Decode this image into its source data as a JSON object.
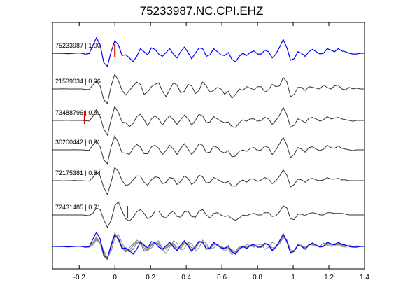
{
  "chart_data": {
    "type": "line",
    "title": "75233987.NC.CPI.EHZ",
    "xlim": [
      -0.35,
      1.4
    ],
    "x_ticks": [
      "-0.2",
      "0",
      "0.2",
      "0.4",
      "0.6",
      "0.8",
      "1",
      "1.2",
      "1.4"
    ],
    "x_tick_values": [
      -0.2,
      0,
      0.2,
      0.4,
      0.6,
      0.8,
      1.0,
      1.2,
      1.4
    ],
    "grid": false,
    "series": [
      {
        "name": "75233987 | 1.00",
        "color": "#0000ff",
        "pick_x": 0.0,
        "values": [
          0.0,
          0.0,
          -0.01,
          -0.01,
          -0.03,
          -0.02,
          0.0,
          0.02,
          0.0,
          -0.06,
          -0.02,
          0.5,
          1.0,
          0.55,
          -0.62,
          -0.85,
          0.1,
          0.8,
          0.55,
          -0.15,
          -0.1,
          -0.3,
          -0.55,
          -0.2,
          0.3,
          0.1,
          -0.1,
          0.35,
          0.25,
          -0.05,
          -0.2,
          0.05,
          0.3,
          -0.05,
          -0.3,
          0.1,
          0.4,
          0.05,
          -0.35,
          0.0,
          0.35,
          0.3,
          -0.2,
          -0.1,
          0.3,
          0.1,
          -0.1,
          -0.15,
          0.05,
          -0.4,
          -0.55,
          -0.2,
          0.0,
          -0.15,
          0.05,
          0.15,
          -0.05,
          -0.05,
          0.2,
          0.1,
          -0.3,
          -0.05,
          0.4,
          0.9,
          0.35,
          -0.45,
          -0.35,
          0.1,
          0.0,
          -0.2,
          0.1,
          0.25,
          0.1,
          -0.05,
          0.0,
          0.3,
          0.2,
          0.1,
          0.3,
          0.15,
          0.1,
          0.0,
          -0.05,
          -0.05,
          0.0,
          0.0
        ]
      },
      {
        "name": "21539034 | 0.96",
        "color": "#333333",
        "pick_x": null,
        "values": [
          0.0,
          0.0,
          0.0,
          0.01,
          0.0,
          0.0,
          0.0,
          0.0,
          0.0,
          -0.03,
          -0.03,
          0.25,
          0.5,
          0.2,
          -0.7,
          -0.95,
          0.2,
          0.95,
          0.55,
          -0.1,
          -0.4,
          -0.1,
          0.2,
          0.45,
          0.3,
          -0.35,
          -0.2,
          0.15,
          0.3,
          0.4,
          -0.15,
          -0.5,
          -0.05,
          0.4,
          0.25,
          -0.25,
          -0.15,
          0.3,
          0.2,
          -0.3,
          -0.1,
          0.45,
          0.2,
          -0.2,
          -0.1,
          0.1,
          0.0,
          -0.35,
          -0.15,
          -0.6,
          -0.35,
          0.0,
          -0.1,
          0.15,
          0.05,
          -0.05,
          0.15,
          0.15,
          -0.2,
          -0.05,
          0.3,
          0.15,
          0.2,
          0.75,
          0.45,
          -0.5,
          -0.35,
          0.1,
          0.1,
          -0.1,
          0.15,
          0.1,
          0.05,
          0.0,
          0.25,
          0.1,
          0.0,
          0.2,
          0.25,
          0.0,
          -0.05,
          0.1,
          0.0,
          0.05,
          0.0,
          0.0
        ]
      },
      {
        "name": "73488796 | 0.91",
        "color": "#333333",
        "pick_x": -0.17,
        "values": [
          0.0,
          0.0,
          0.0,
          0.0,
          0.01,
          0.0,
          0.0,
          0.0,
          0.0,
          -0.02,
          -0.04,
          0.25,
          0.7,
          0.25,
          -0.55,
          -0.95,
          0.05,
          0.9,
          0.5,
          -0.1,
          -0.15,
          -0.4,
          -0.2,
          0.25,
          0.4,
          0.05,
          -0.35,
          0.1,
          0.3,
          0.1,
          -0.3,
          0.05,
          0.3,
          0.05,
          -0.25,
          0.05,
          0.35,
          0.1,
          -0.3,
          0.0,
          0.4,
          0.3,
          -0.15,
          -0.1,
          0.25,
          0.1,
          -0.05,
          -0.15,
          -0.1,
          -0.4,
          -0.45,
          -0.15,
          0.05,
          -0.05,
          0.1,
          0.1,
          -0.05,
          0.0,
          0.2,
          0.1,
          -0.25,
          0.0,
          0.35,
          0.85,
          0.35,
          -0.45,
          -0.3,
          0.1,
          0.0,
          -0.15,
          0.15,
          0.2,
          0.1,
          -0.05,
          0.05,
          0.25,
          0.1,
          0.15,
          0.2,
          0.1,
          0.05,
          0.0,
          -0.05,
          0.0,
          0.0,
          0.0
        ]
      },
      {
        "name": "30200442 | 0.91",
        "color": "#333333",
        "pick_x": null,
        "values": [
          0.0,
          0.0,
          0.0,
          0.0,
          0.0,
          0.0,
          0.01,
          0.0,
          0.0,
          -0.02,
          -0.03,
          0.3,
          0.6,
          0.2,
          -0.65,
          -0.9,
          0.2,
          0.9,
          0.45,
          -0.2,
          -0.2,
          -0.3,
          0.1,
          0.35,
          0.2,
          -0.25,
          -0.25,
          0.2,
          0.3,
          0.1,
          -0.3,
          -0.05,
          0.3,
          0.05,
          -0.3,
          0.1,
          0.4,
          0.05,
          -0.3,
          0.0,
          0.4,
          0.3,
          -0.2,
          -0.15,
          0.25,
          0.15,
          -0.1,
          -0.2,
          -0.05,
          -0.45,
          -0.4,
          -0.1,
          0.0,
          -0.1,
          0.1,
          0.15,
          -0.05,
          0.0,
          0.25,
          0.15,
          -0.3,
          0.0,
          0.4,
          0.8,
          0.3,
          -0.5,
          -0.3,
          0.15,
          0.05,
          -0.15,
          0.15,
          0.2,
          0.05,
          -0.05,
          0.05,
          0.3,
          0.15,
          0.1,
          0.25,
          0.1,
          0.05,
          0.0,
          -0.05,
          0.0,
          0.0,
          0.0
        ]
      },
      {
        "name": "72175381 | 0.84",
        "color": "#333333",
        "pick_x": null,
        "values": [
          0.0,
          0.0,
          0.0,
          -0.01,
          0.0,
          0.0,
          0.02,
          0.0,
          0.0,
          -0.02,
          -0.03,
          0.2,
          0.55,
          0.3,
          -0.45,
          -0.9,
          -0.1,
          0.85,
          0.6,
          0.0,
          -0.3,
          -0.25,
          0.05,
          0.3,
          0.3,
          -0.1,
          -0.3,
          0.05,
          0.25,
          0.2,
          -0.2,
          -0.1,
          0.2,
          0.15,
          -0.25,
          -0.05,
          0.3,
          0.15,
          -0.25,
          -0.05,
          0.35,
          0.25,
          -0.15,
          -0.1,
          0.2,
          0.1,
          -0.05,
          -0.15,
          -0.05,
          -0.35,
          -0.35,
          -0.1,
          0.05,
          -0.1,
          0.1,
          0.1,
          -0.05,
          0.05,
          0.2,
          0.1,
          -0.2,
          0.0,
          0.3,
          0.7,
          0.35,
          -0.4,
          -0.25,
          0.1,
          0.05,
          -0.1,
          0.1,
          0.15,
          0.05,
          0.0,
          0.05,
          0.2,
          0.1,
          0.1,
          0.15,
          0.05,
          0.05,
          0.0,
          0.0,
          0.0,
          0.0,
          0.0
        ]
      },
      {
        "name": "72431485 | 0.71",
        "color": "#333333",
        "pick_x": 0.07,
        "values": [
          0.0,
          0.0,
          0.0,
          0.0,
          0.0,
          0.0,
          0.0,
          0.0,
          0.0,
          -0.02,
          -0.05,
          0.1,
          0.45,
          0.35,
          -0.3,
          -0.8,
          -0.35,
          0.6,
          0.85,
          0.25,
          -0.25,
          -0.4,
          -0.15,
          0.2,
          0.35,
          0.1,
          -0.25,
          -0.1,
          0.25,
          0.25,
          -0.1,
          -0.2,
          0.1,
          0.25,
          -0.1,
          -0.15,
          0.2,
          0.25,
          -0.1,
          -0.15,
          0.25,
          0.35,
          0.0,
          -0.2,
          0.1,
          0.15,
          0.0,
          -0.1,
          -0.05,
          -0.25,
          -0.35,
          -0.2,
          0.0,
          -0.05,
          0.05,
          0.1,
          0.0,
          0.0,
          0.15,
          0.15,
          -0.1,
          -0.05,
          0.2,
          0.6,
          0.45,
          -0.25,
          -0.3,
          0.05,
          0.05,
          -0.05,
          0.1,
          0.15,
          0.1,
          0.0,
          0.0,
          0.15,
          0.15,
          0.1,
          0.1,
          0.1,
          0.05,
          0.0,
          0.0,
          0.0,
          0.0,
          0.0
        ]
      }
    ]
  }
}
